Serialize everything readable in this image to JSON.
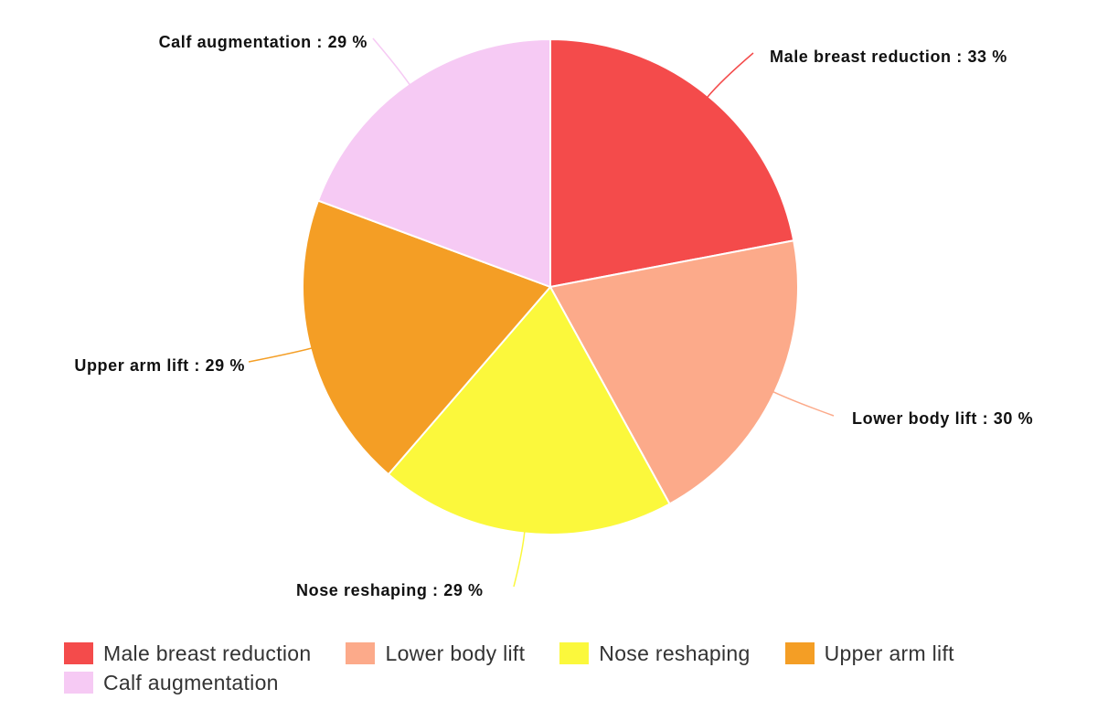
{
  "chart_data": {
    "type": "pie",
    "slices": [
      {
        "name": "Male breast reduction",
        "value": 33,
        "label": "Male breast reduction : 33 %",
        "color": "#f44b4b"
      },
      {
        "name": "Lower body lift",
        "value": 30,
        "label": "Lower body lift : 30 %",
        "color": "#fcaa8a"
      },
      {
        "name": "Nose reshaping",
        "value": 29,
        "label": "Nose reshaping : 29 %",
        "color": "#fbf83c"
      },
      {
        "name": "Upper arm lift",
        "value": 29,
        "label": "Upper arm lift : 29 %",
        "color": "#f49e25"
      },
      {
        "name": "Calf augmentation",
        "value": 29,
        "label": "Calf augmentation : 29 %",
        "color": "#f6caf4"
      }
    ],
    "legend_position": "bottom"
  }
}
